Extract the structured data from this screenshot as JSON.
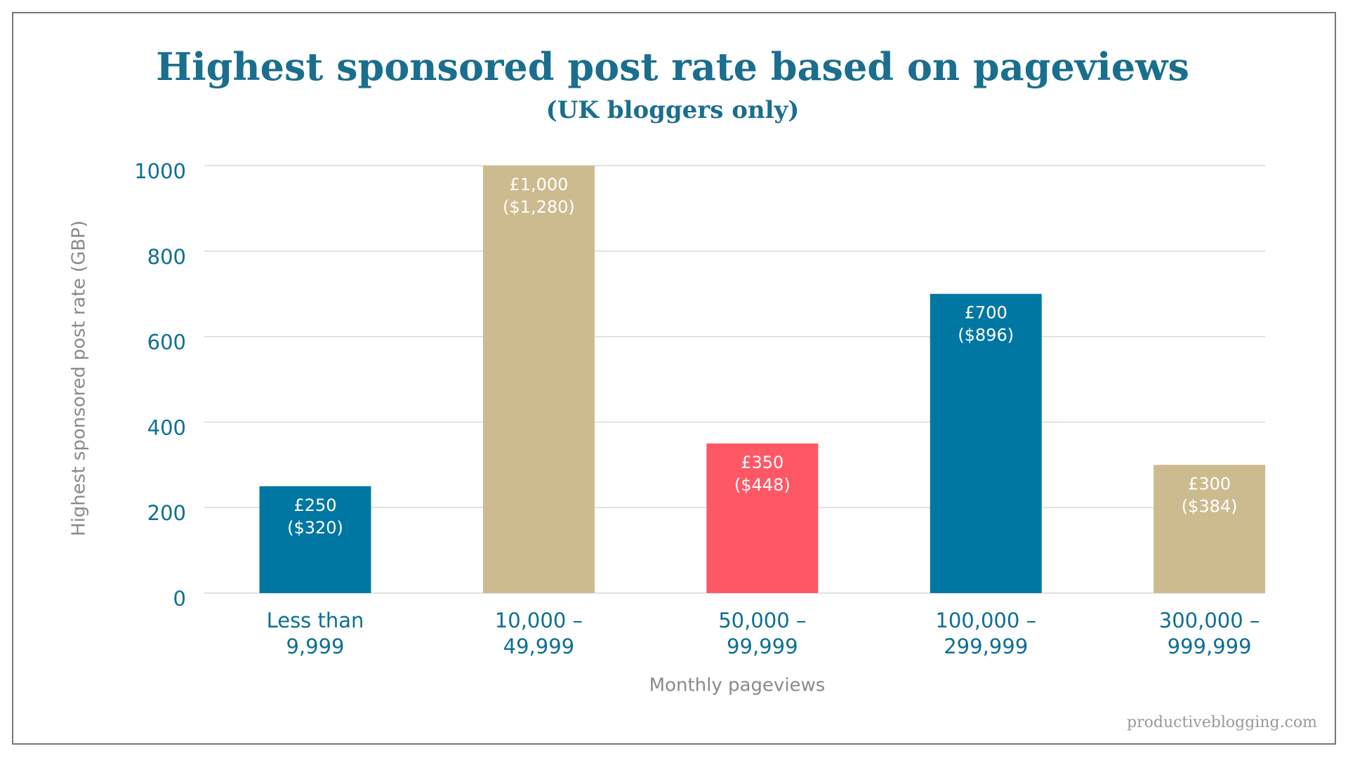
{
  "chart_data": {
    "type": "bar",
    "title": "Highest sponsored post rate based on pageviews",
    "subtitle": "(UK bloggers only)",
    "y_label": "Highest sponsored post rate (GBP)",
    "x_label": "Monthly pageviews",
    "source": "productiveblogging.com",
    "categories": [
      [
        "Less than",
        "9,999"
      ],
      [
        "10,000 –",
        "49,999"
      ],
      [
        "50,000 –",
        "99,999"
      ],
      [
        "100,000 –",
        "299,999"
      ],
      [
        "300,000 –",
        "999,999"
      ]
    ],
    "values": [
      250,
      1000,
      350,
      700,
      300
    ],
    "value_labels": [
      [
        "£250",
        "($320)"
      ],
      [
        "£1,000",
        "($1,280)"
      ],
      [
        "£350",
        "($448)"
      ],
      [
        "£700",
        "($896)"
      ],
      [
        "£300",
        "($384)"
      ]
    ],
    "colors": [
      "#0077a3",
      "#cdbb90",
      "#fe5867",
      "#0077a3",
      "#cdbb90"
    ],
    "ylim": [
      0,
      1000
    ],
    "yticks": [
      0,
      200,
      400,
      600,
      800,
      1000
    ],
    "grid": true
  }
}
